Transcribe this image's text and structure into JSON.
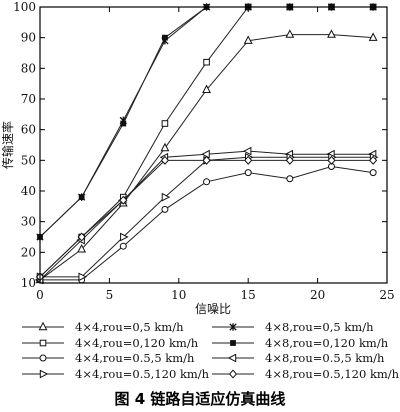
{
  "figure": {
    "caption": "图 4   链路自适应仿真曲线"
  },
  "chart_data": {
    "type": "line",
    "xlabel": "信噪比",
    "ylabel": "传输速率",
    "xlim": [
      0,
      25
    ],
    "ylim": [
      10,
      100
    ],
    "xticks": [
      0,
      5,
      10,
      15,
      20,
      25
    ],
    "yticks": [
      10,
      20,
      30,
      40,
      50,
      60,
      70,
      80,
      90,
      100
    ],
    "grid": false,
    "legend_position": "bottom",
    "series": [
      {
        "name": "4×4,rou=0,5 km/h",
        "marker": "triangle-up",
        "x": [
          0,
          3,
          6,
          9,
          12,
          15,
          18,
          21,
          24
        ],
        "y": [
          11,
          21,
          36,
          54,
          73,
          89,
          91,
          91,
          90
        ]
      },
      {
        "name": "4×8,rou=0,5 km/h",
        "marker": "star",
        "x": [
          0,
          3,
          6,
          9,
          12,
          15,
          18,
          21,
          24
        ],
        "y": [
          25,
          38,
          63,
          89,
          100,
          100,
          100,
          100,
          100
        ]
      },
      {
        "name": "4×4,rou=0,120 km/h",
        "marker": "square",
        "x": [
          0,
          3,
          6,
          9,
          12,
          15,
          18,
          21,
          24
        ],
        "y": [
          12,
          25,
          38,
          62,
          82,
          100,
          100,
          100,
          100
        ]
      },
      {
        "name": "4×8,rou=0,120 km/h",
        "marker": "filled-square",
        "x": [
          0,
          3,
          6,
          9,
          12,
          15,
          18,
          21,
          24
        ],
        "y": [
          25,
          38,
          62,
          90,
          100,
          100,
          100,
          100,
          100
        ]
      },
      {
        "name": "4×4,rou=0.5,5 km/h",
        "marker": "circle",
        "x": [
          0,
          3,
          6,
          9,
          12,
          15,
          18,
          21,
          24
        ],
        "y": [
          11,
          11,
          22,
          34,
          43,
          46,
          44,
          48,
          46
        ]
      },
      {
        "name": "4×8,rou=0.5,5 km/h",
        "marker": "triangle-left",
        "x": [
          0,
          3,
          6,
          9,
          12,
          15,
          18,
          21,
          24
        ],
        "y": [
          11,
          24,
          37,
          51,
          52,
          53,
          52,
          52,
          52
        ]
      },
      {
        "name": "4×4,rou=0.5,120 km/h",
        "marker": "triangle-right",
        "x": [
          0,
          3,
          6,
          9,
          12,
          15,
          18,
          21,
          24
        ],
        "y": [
          12,
          12,
          25,
          38,
          50,
          51,
          51,
          51,
          51
        ]
      },
      {
        "name": "4×8,rou=0.5,120 km/h",
        "marker": "diamond",
        "x": [
          0,
          3,
          6,
          9,
          12,
          15,
          18,
          21,
          24
        ],
        "y": [
          12,
          25,
          37,
          50,
          50,
          50,
          50,
          50,
          50
        ]
      }
    ]
  }
}
